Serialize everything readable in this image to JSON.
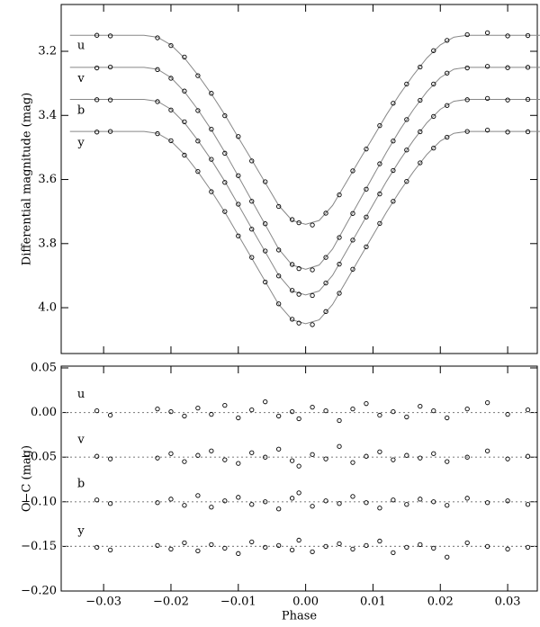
{
  "chart_data": [
    {
      "type": "scatter",
      "ylabel": "Differential magnitude (mag)",
      "xlim": [
        -0.0363,
        0.0344
      ],
      "ylim": [
        4.143,
        3.054
      ],
      "xticks": [
        -0.03,
        -0.02,
        -0.01,
        0,
        0.01,
        0.02,
        0.03
      ],
      "yticks": [
        3.2,
        3.4,
        3.6,
        3.8,
        {
          "value": 4,
          "label": "4.0"
        }
      ],
      "x": [
        -0.031,
        -0.029,
        -0.022,
        -0.02,
        -0.018,
        -0.016,
        -0.014,
        -0.012,
        -0.01,
        -0.008,
        -0.006,
        -0.004,
        -0.002,
        -0.001,
        0.001,
        0.003,
        0.005,
        0.007,
        0.009,
        0.011,
        0.013,
        0.015,
        0.017,
        0.019,
        0.021,
        0.024,
        0.027,
        0.03,
        0.033
      ],
      "series": [
        {
          "name": "u",
          "color": "#000000",
          "values": [
            3.15,
            3.152,
            3.158,
            3.182,
            3.218,
            3.276,
            3.331,
            3.401,
            3.466,
            3.542,
            3.607,
            3.684,
            3.725,
            3.735,
            3.742,
            3.705,
            3.648,
            3.573,
            3.505,
            3.432,
            3.362,
            3.302,
            3.249,
            3.198,
            3.166,
            3.148,
            3.142,
            3.152,
            3.151
          ]
        },
        {
          "name": "v",
          "color": "#000000",
          "values": [
            3.252,
            3.249,
            3.257,
            3.284,
            3.324,
            3.385,
            3.443,
            3.518,
            3.588,
            3.668,
            3.738,
            3.82,
            3.865,
            3.878,
            3.882,
            3.843,
            3.781,
            3.706,
            3.63,
            3.551,
            3.48,
            3.413,
            3.353,
            3.302,
            3.268,
            3.252,
            3.247,
            3.251,
            3.25
          ]
        },
        {
          "name": "b",
          "color": "#000000",
          "values": [
            3.351,
            3.352,
            3.357,
            3.383,
            3.42,
            3.48,
            3.537,
            3.609,
            3.677,
            3.755,
            3.823,
            3.901,
            3.946,
            3.958,
            3.962,
            3.923,
            3.864,
            3.789,
            3.717,
            3.645,
            3.572,
            3.508,
            3.451,
            3.403,
            3.369,
            3.351,
            3.347,
            3.352,
            3.35
          ]
        },
        {
          "name": "y",
          "color": "#000000",
          "values": [
            3.452,
            3.45,
            3.457,
            3.479,
            3.524,
            3.575,
            3.638,
            3.7,
            3.776,
            3.843,
            3.92,
            3.988,
            4.036,
            4.048,
            4.053,
            4.012,
            3.955,
            3.88,
            3.81,
            3.737,
            3.668,
            3.606,
            3.548,
            3.502,
            3.468,
            3.45,
            3.446,
            3.452,
            3.451
          ]
        }
      ],
      "model_color": "#888888",
      "model_x": [
        -0.035,
        -0.024,
        -0.022,
        -0.02,
        -0.018,
        -0.016,
        -0.014,
        -0.012,
        -0.01,
        -0.008,
        -0.006,
        -0.004,
        -0.002,
        0,
        0.002,
        0.004,
        0.006,
        0.008,
        0.01,
        0.012,
        0.014,
        0.016,
        0.018,
        0.02,
        0.022,
        0.024,
        0.035
      ],
      "model_series": [
        [
          3.15,
          3.15,
          3.156,
          3.18,
          3.221,
          3.274,
          3.333,
          3.398,
          3.469,
          3.539,
          3.61,
          3.681,
          3.728,
          3.74,
          3.728,
          3.681,
          3.61,
          3.539,
          3.469,
          3.398,
          3.333,
          3.274,
          3.221,
          3.18,
          3.156,
          3.15,
          3.15
        ],
        [
          3.25,
          3.25,
          3.256,
          3.282,
          3.326,
          3.382,
          3.445,
          3.515,
          3.59,
          3.666,
          3.741,
          3.817,
          3.867,
          3.88,
          3.867,
          3.817,
          3.741,
          3.666,
          3.59,
          3.515,
          3.445,
          3.382,
          3.326,
          3.282,
          3.256,
          3.25,
          3.25
        ],
        [
          3.35,
          3.35,
          3.356,
          3.381,
          3.423,
          3.478,
          3.539,
          3.606,
          3.679,
          3.753,
          3.826,
          3.899,
          3.948,
          3.96,
          3.948,
          3.899,
          3.826,
          3.753,
          3.679,
          3.606,
          3.539,
          3.478,
          3.423,
          3.381,
          3.356,
          3.35,
          3.35
        ],
        [
          3.45,
          3.45,
          3.456,
          3.48,
          3.522,
          3.576,
          3.636,
          3.702,
          3.774,
          3.846,
          3.918,
          3.99,
          4.038,
          4.05,
          4.038,
          3.99,
          3.918,
          3.846,
          3.774,
          3.702,
          3.636,
          3.576,
          3.522,
          3.48,
          3.456,
          3.45,
          3.45
        ]
      ]
    },
    {
      "type": "scatter",
      "xlabel": "Phase",
      "ylabel": "O−C (mag)",
      "xlim": [
        -0.0363,
        0.0344
      ],
      "ylim": [
        -0.2,
        0.052
      ],
      "xticks": [
        {
          "value": -0.03,
          "label": "−0.03"
        },
        {
          "value": -0.02,
          "label": "−0.02"
        },
        {
          "value": -0.01,
          "label": "−0.01"
        },
        {
          "value": 0,
          "label": "0.00"
        },
        {
          "value": 0.01,
          "label": "0.01"
        },
        {
          "value": 0.02,
          "label": "0.02"
        },
        {
          "value": 0.03,
          "label": "0.03"
        }
      ],
      "yticks": [
        0.05,
        {
          "value": 0,
          "label": "0.00"
        },
        {
          "value": -0.05,
          "label": "−0.05"
        },
        {
          "value": -0.1,
          "label": "−0.10"
        },
        {
          "value": -0.15,
          "label": "−0.15"
        },
        {
          "value": -0.2,
          "label": "−0.20"
        }
      ],
      "ref_lines": [
        0,
        -0.05,
        -0.1,
        -0.15
      ],
      "ref_color": "#888888",
      "x": [
        -0.031,
        -0.029,
        -0.022,
        -0.02,
        -0.018,
        -0.016,
        -0.014,
        -0.012,
        -0.01,
        -0.008,
        -0.006,
        -0.004,
        -0.002,
        -0.001,
        0.001,
        0.003,
        0.005,
        0.007,
        0.009,
        0.011,
        0.013,
        0.015,
        0.017,
        0.019,
        0.021,
        0.024,
        0.027,
        0.03,
        0.033
      ],
      "series": [
        {
          "name": "u",
          "color": "#000000",
          "values": [
            0.002,
            -0.003,
            0.004,
            0.001,
            -0.004,
            0.005,
            -0.002,
            0.008,
            -0.006,
            0.003,
            0.012,
            -0.004,
            0.001,
            -0.007,
            0.006,
            0.002,
            -0.009,
            0.004,
            0.01,
            -0.003,
            0.001,
            -0.005,
            0.007,
            0.002,
            -0.006,
            0.004,
            0.011,
            -0.002,
            0.003
          ]
        },
        {
          "name": "v",
          "color": "#000000",
          "values": [
            -0.049,
            -0.052,
            -0.051,
            -0.046,
            -0.055,
            -0.048,
            -0.043,
            -0.053,
            -0.057,
            -0.045,
            -0.05,
            -0.041,
            -0.054,
            -0.06,
            -0.047,
            -0.052,
            -0.038,
            -0.056,
            -0.049,
            -0.044,
            -0.053,
            -0.048,
            -0.051,
            -0.046,
            -0.055,
            -0.05,
            -0.043,
            -0.052,
            -0.049
          ]
        },
        {
          "name": "b",
          "color": "#000000",
          "values": [
            -0.098,
            -0.102,
            -0.101,
            -0.097,
            -0.104,
            -0.093,
            -0.106,
            -0.099,
            -0.095,
            -0.103,
            -0.1,
            -0.108,
            -0.096,
            -0.09,
            -0.105,
            -0.099,
            -0.102,
            -0.094,
            -0.101,
            -0.107,
            -0.098,
            -0.103,
            -0.097,
            -0.1,
            -0.104,
            -0.096,
            -0.101,
            -0.099,
            -0.103
          ]
        },
        {
          "name": "y",
          "color": "#000000",
          "values": [
            -0.151,
            -0.154,
            -0.149,
            -0.153,
            -0.146,
            -0.155,
            -0.148,
            -0.152,
            -0.158,
            -0.145,
            -0.151,
            -0.149,
            -0.154,
            -0.143,
            -0.156,
            -0.15,
            -0.147,
            -0.153,
            -0.149,
            -0.144,
            -0.157,
            -0.151,
            -0.148,
            -0.152,
            -0.162,
            -0.146,
            -0.15,
            -0.153,
            -0.151
          ]
        }
      ]
    }
  ]
}
